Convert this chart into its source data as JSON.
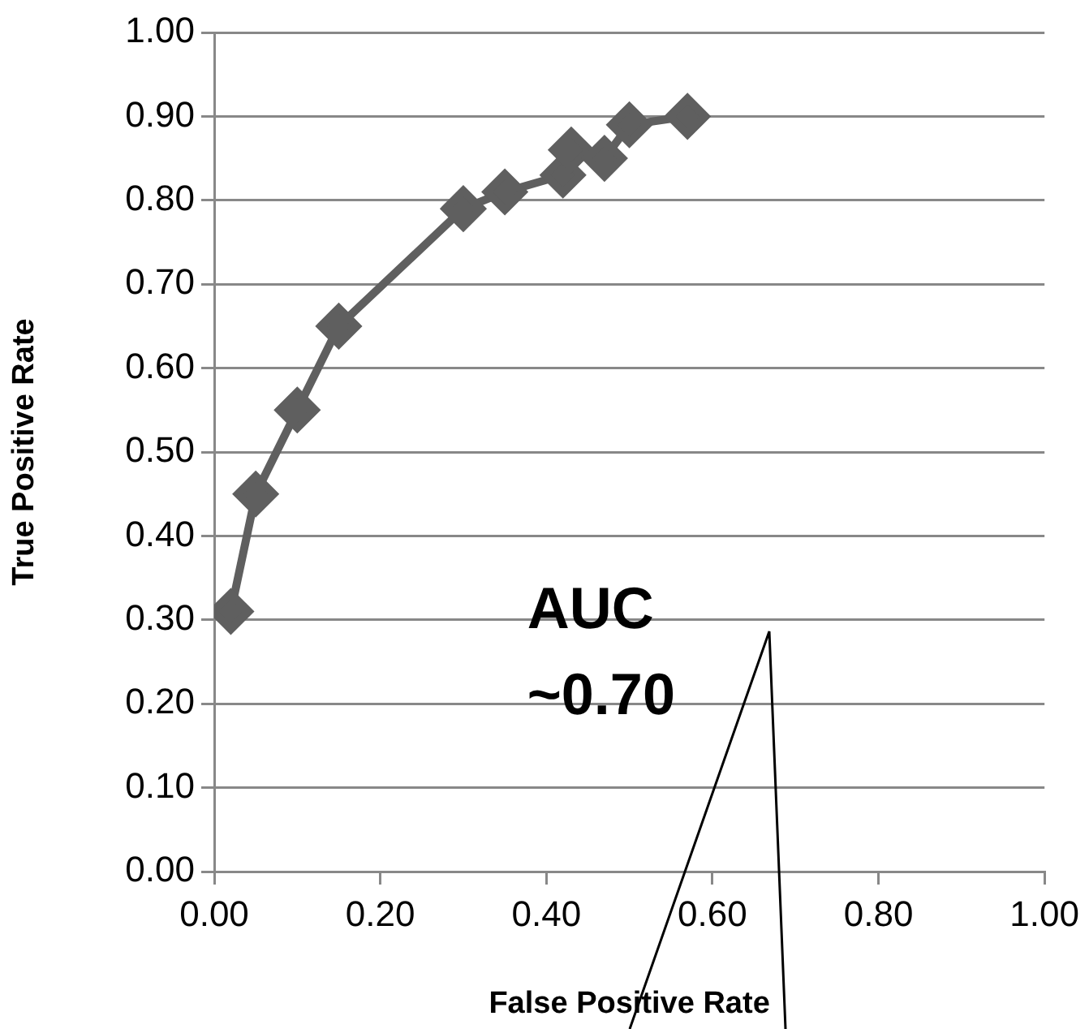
{
  "chart_data": {
    "type": "line",
    "xlabel": "False Positive Rate",
    "ylabel": "True Positive Rate",
    "annotations": [
      "AUC ~0.70"
    ],
    "series": [
      {
        "color": "#5f5f5f",
        "x": [
          0.02,
          0.05,
          0.1,
          0.15,
          0.3,
          0.35,
          0.42,
          0.43,
          0.47,
          0.5,
          0.57
        ],
        "values": [
          0.31,
          0.45,
          0.55,
          0.65,
          0.79,
          0.81,
          0.83,
          0.86,
          0.85,
          0.89,
          0.9
        ]
      }
    ],
    "xlim": [
      0,
      1
    ],
    "xticks": [
      {
        "value": 0,
        "label": "0.00"
      },
      {
        "value": 0.2,
        "label": "0.20"
      },
      {
        "value": 0.4,
        "label": "0.40"
      },
      {
        "value": 0.6,
        "label": "0.60"
      },
      {
        "value": 0.8,
        "label": "0.80"
      },
      {
        "value": 1,
        "label": "1.00"
      }
    ],
    "ylim": [
      0,
      1
    ],
    "yticks": [
      {
        "value": 0,
        "label": "0.00"
      },
      {
        "value": 0.1,
        "label": "0.10"
      },
      {
        "value": 0.2,
        "label": "0.20"
      },
      {
        "value": 0.3,
        "label": "0.30"
      },
      {
        "value": 0.4,
        "label": "0.40"
      },
      {
        "value": 0.5,
        "label": "0.50"
      },
      {
        "value": 0.6,
        "label": "0.60"
      },
      {
        "value": 0.7,
        "label": "0.70"
      },
      {
        "value": 0.8,
        "label": "0.80"
      },
      {
        "value": 0.9,
        "label": "0.90"
      },
      {
        "value": 1,
        "label": "1.00"
      }
    ],
    "grid": "y",
    "legend": false,
    "marker": "diamond",
    "line_style": "solid"
  }
}
